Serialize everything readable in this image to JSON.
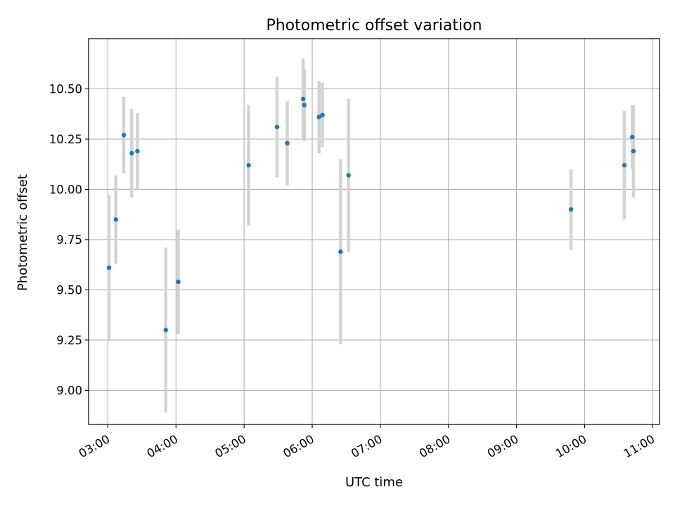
{
  "chart_data": {
    "type": "scatter",
    "title": "Photometric offset variation",
    "xlabel": "UTC time",
    "ylabel": "Photometric offset",
    "x_axis_kind": "time",
    "xlim": [
      "02:43",
      "11:06"
    ],
    "ylim": [
      8.83,
      10.75
    ],
    "grid": true,
    "x_ticks": [
      "03:00",
      "04:00",
      "05:00",
      "06:00",
      "07:00",
      "08:00",
      "09:00",
      "10:00",
      "11:00"
    ],
    "y_ticks": [
      "9.00",
      "9.25",
      "9.50",
      "9.75",
      "10.00",
      "10.25",
      "10.50"
    ],
    "marker_color": "#1f77b4",
    "errorbar_color": "#d3d3d3",
    "points": [
      {
        "x": "03:01",
        "y": 9.61,
        "err": 0.36
      },
      {
        "x": "03:07",
        "y": 9.85,
        "err": 0.22
      },
      {
        "x": "03:14",
        "y": 10.27,
        "err": 0.19
      },
      {
        "x": "03:21",
        "y": 10.18,
        "err": 0.22
      },
      {
        "x": "03:26",
        "y": 10.19,
        "err": 0.19
      },
      {
        "x": "03:51",
        "y": 9.3,
        "err": 0.41
      },
      {
        "x": "04:02",
        "y": 9.54,
        "err": 0.26
      },
      {
        "x": "05:04",
        "y": 10.12,
        "err": 0.3
      },
      {
        "x": "05:29",
        "y": 10.31,
        "err": 0.25
      },
      {
        "x": "05:38",
        "y": 10.23,
        "err": 0.21
      },
      {
        "x": "05:52",
        "y": 10.45,
        "err": 0.2
      },
      {
        "x": "05:53",
        "y": 10.42,
        "err": 0.18
      },
      {
        "x": "06:06",
        "y": 10.36,
        "err": 0.18
      },
      {
        "x": "06:09",
        "y": 10.37,
        "err": 0.16
      },
      {
        "x": "06:25",
        "y": 9.69,
        "err": 0.46
      },
      {
        "x": "06:32",
        "y": 10.07,
        "err": 0.38
      },
      {
        "x": "09:48",
        "y": 9.9,
        "err": 0.2
      },
      {
        "x": "10:35",
        "y": 10.12,
        "err": 0.27
      },
      {
        "x": "10:42",
        "y": 10.26,
        "err": 0.16
      },
      {
        "x": "10:43",
        "y": 10.19,
        "err": 0.23
      }
    ]
  }
}
